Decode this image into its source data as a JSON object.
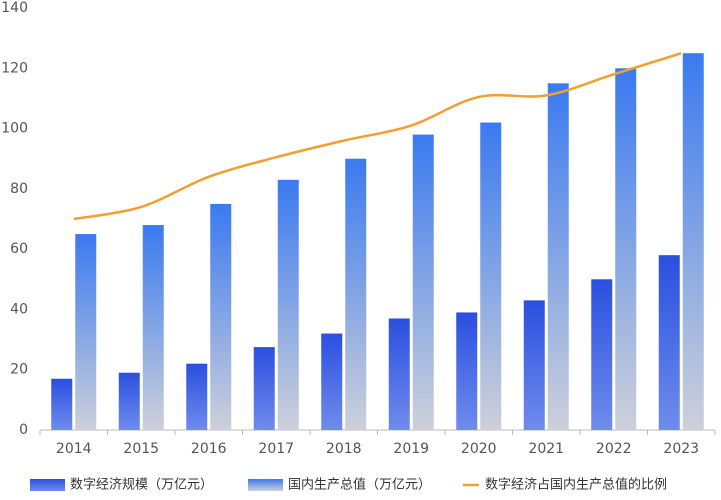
{
  "chart_data": {
    "type": "bar",
    "categories": [
      "2014",
      "2015",
      "2016",
      "2017",
      "2018",
      "2019",
      "2020",
      "2021",
      "2022",
      "2023"
    ],
    "series": [
      {
        "name": "数字经济规模（万亿元）",
        "color": "#2a4fe0",
        "type": "bar",
        "values": [
          17,
          19,
          22,
          27.5,
          32,
          37,
          39,
          43,
          50,
          58
        ]
      },
      {
        "name": "国内生产总值（万亿元）",
        "color": "#3a7af0",
        "type": "bar",
        "values": [
          65,
          68,
          75,
          83,
          90,
          98,
          102,
          115,
          120,
          125
        ]
      },
      {
        "name": "数字经济占国内生产总值的比例",
        "color": "#f0a030",
        "type": "line",
        "values": [
          70,
          74,
          84,
          90.5,
          96,
          101,
          110.5,
          111,
          118,
          125
        ]
      }
    ],
    "ylim": [
      0,
      140
    ],
    "yticks": [
      0,
      20,
      40,
      60,
      80,
      100,
      120,
      140
    ],
    "grid": false
  }
}
